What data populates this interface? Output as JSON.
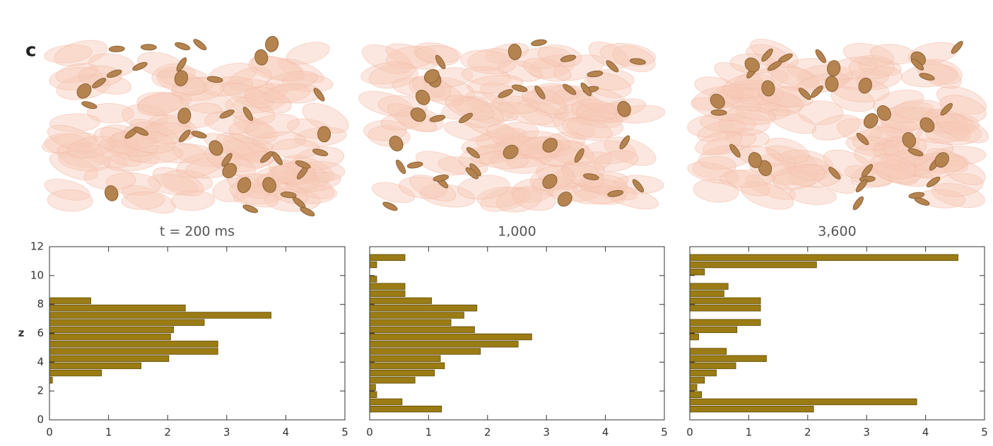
{
  "panel_label": "c",
  "chart_data": [
    {
      "type": "histogram",
      "orientation": "horizontal",
      "title": "t = 200 ms",
      "ylabel": "z",
      "bins": [
        0,
        0.5,
        1,
        1.5,
        2,
        2.5,
        3,
        3.5,
        4,
        4.5,
        5,
        5.5,
        6,
        6.5,
        7,
        7.5,
        8,
        8.5,
        9,
        9.5,
        10,
        10.5,
        11,
        11.5,
        12
      ],
      "values": [
        0,
        0,
        0,
        0,
        0,
        0.05,
        0.88,
        1.55,
        2.02,
        2.85,
        2.85,
        2.05,
        2.1,
        2.62,
        3.75,
        2.3,
        0.7,
        0,
        0,
        0,
        0,
        0,
        0,
        0
      ],
      "color": "#9b7c14",
      "xlim": [
        0,
        5
      ],
      "xticks": [
        0,
        1,
        2,
        3,
        4,
        5
      ],
      "ylim": [
        0,
        12
      ],
      "yticks": [
        0,
        2,
        4,
        6,
        8,
        10,
        12
      ]
    },
    {
      "type": "histogram",
      "orientation": "horizontal",
      "title": "1,000",
      "bins": [
        0,
        0.5,
        1,
        1.5,
        2,
        2.5,
        3,
        3.5,
        4,
        4.5,
        5,
        5.5,
        6,
        6.5,
        7,
        7.5,
        8,
        8.5,
        9,
        9.5,
        10,
        10.5,
        11,
        11.5,
        12
      ],
      "values": [
        0,
        1.22,
        0.55,
        0.12,
        0.1,
        0.77,
        1.1,
        1.27,
        1.2,
        1.88,
        2.52,
        2.75,
        1.78,
        1.38,
        1.6,
        1.82,
        1.05,
        0.6,
        0.6,
        0.12,
        0,
        0.12,
        0.6,
        0
      ],
      "color": "#9b7c14",
      "xlim": [
        0,
        5
      ],
      "xticks": [
        0,
        1,
        2,
        3,
        4,
        5
      ],
      "ylim": [
        0,
        12
      ],
      "yticks": [
        0,
        2,
        4,
        6,
        8,
        10,
        12
      ]
    },
    {
      "type": "histogram",
      "orientation": "horizontal",
      "title": "3,600",
      "bins": [
        0,
        0.5,
        1,
        1.5,
        2,
        2.5,
        3,
        3.5,
        4,
        4.5,
        5,
        5.5,
        6,
        6.5,
        7,
        7.5,
        8,
        8.5,
        9,
        9.5,
        10,
        10.5,
        11,
        11.5,
        12
      ],
      "values": [
        0,
        2.1,
        3.85,
        0.2,
        0.12,
        0.25,
        0.45,
        0.78,
        1.3,
        0.62,
        0,
        0.15,
        0.8,
        1.2,
        0,
        1.2,
        1.2,
        0.58,
        0.65,
        0,
        0.25,
        2.15,
        4.55,
        0
      ],
      "color": "#9b7c14",
      "xlim": [
        0,
        5
      ],
      "xticks": [
        0,
        1,
        2,
        3,
        4,
        5
      ],
      "ylim": [
        0,
        12
      ],
      "yticks": [
        0,
        2,
        4,
        6,
        8,
        10,
        12
      ]
    }
  ]
}
